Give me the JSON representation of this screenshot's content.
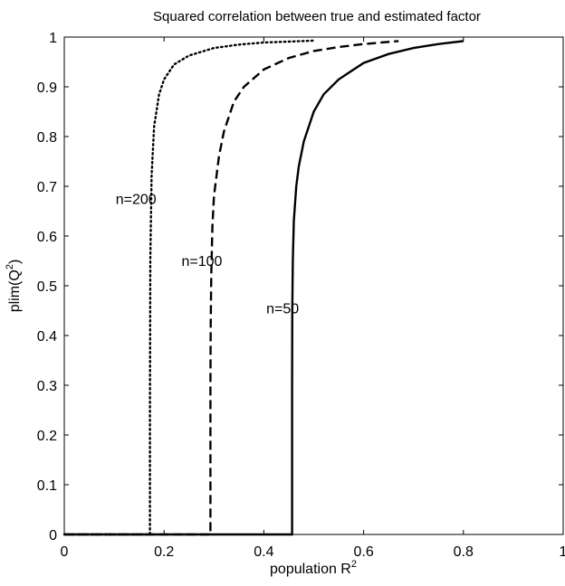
{
  "chart_data": {
    "type": "line",
    "title": "Squared correlation between true and estimated factor",
    "xlabel": {
      "text": "population R",
      "sup": "2"
    },
    "ylabel": {
      "text": "plim(Q",
      "sup": "2",
      "suffix": ")"
    },
    "xlim": [
      0,
      1
    ],
    "ylim": [
      0,
      1
    ],
    "xticks": [
      "0",
      "0.2",
      "0.4",
      "0.6",
      "0.8",
      "1"
    ],
    "yticks": [
      "0",
      "0.1",
      "0.2",
      "0.3",
      "0.4",
      "0.5",
      "0.6",
      "0.7",
      "0.8",
      "0.9",
      "1"
    ],
    "grid": false,
    "series": [
      {
        "name": "n=200",
        "style": "dotted",
        "color": "#000000",
        "x": [
          0,
          0.1716,
          0.1716,
          0.172,
          0.1725,
          0.175,
          0.18,
          0.19,
          0.2,
          0.22,
          0.25,
          0.3,
          0.35,
          0.4,
          0.45,
          0.5
        ],
        "y": [
          0,
          0,
          0.25,
          0.4,
          0.55,
          0.72,
          0.82,
          0.885,
          0.915,
          0.945,
          0.963,
          0.978,
          0.985,
          0.989,
          0.991,
          0.993
        ]
      },
      {
        "name": "n=100",
        "style": "dashed",
        "color": "#000000",
        "x": [
          0,
          0.2929,
          0.2929,
          0.2935,
          0.2945,
          0.297,
          0.3,
          0.31,
          0.32,
          0.34,
          0.36,
          0.4,
          0.45,
          0.5,
          0.55,
          0.6,
          0.67
        ],
        "y": [
          0,
          0,
          0.3,
          0.42,
          0.52,
          0.62,
          0.68,
          0.76,
          0.81,
          0.87,
          0.9,
          0.935,
          0.958,
          0.972,
          0.98,
          0.986,
          0.992
        ]
      },
      {
        "name": "n=50",
        "style": "solid",
        "color": "#000000",
        "x": [
          0,
          0.4566,
          0.4566,
          0.457,
          0.458,
          0.46,
          0.465,
          0.47,
          0.48,
          0.5,
          0.52,
          0.55,
          0.6,
          0.65,
          0.7,
          0.75,
          0.8
        ],
        "y": [
          0,
          0,
          0.3,
          0.45,
          0.55,
          0.63,
          0.7,
          0.74,
          0.79,
          0.85,
          0.885,
          0.915,
          0.948,
          0.966,
          0.978,
          0.986,
          0.992
        ]
      }
    ],
    "annotations": [
      {
        "text": "n=200",
        "x": 0.103,
        "y": 0.665
      },
      {
        "text": "n=100",
        "x": 0.235,
        "y": 0.54
      },
      {
        "text": "n=50",
        "x": 0.405,
        "y": 0.445
      }
    ]
  }
}
